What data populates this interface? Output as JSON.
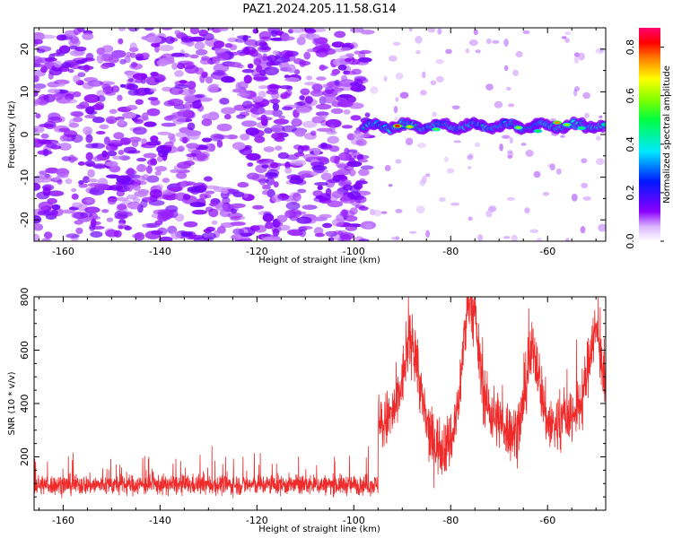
{
  "figure": {
    "title": "PAZ1.2024.205.11.58.G14"
  },
  "chart_data": [
    {
      "type": "heatmap",
      "title": "PAZ1.2024.205.11.58.G14",
      "xlabel": "Height of straight line (km)",
      "ylabel": "Frequency (Hz)",
      "xlim": [
        -166,
        -48
      ],
      "ylim": [
        -25,
        25
      ],
      "x_ticks": [
        -160,
        -140,
        -120,
        -100,
        -80,
        -60
      ],
      "y_ticks": [
        -20,
        -10,
        0,
        10,
        20
      ],
      "colorbar": {
        "label": "Normalized spectral amplitude",
        "range": [
          0.0,
          0.88
        ],
        "ticks": [
          "0.0",
          "0.2",
          "0.4",
          "0.6",
          "0.8"
        ],
        "colormap": "rainbow (white-violet-blue-cyan-green-yellow-red-magenta)"
      },
      "features": {
        "noise_region_x": [
          -166,
          -97
        ],
        "signal_band": {
          "x_range": [
            -98,
            -48
          ],
          "frequency_start": 2,
          "frequency_end": 2,
          "peak_amplitude": 0.8
        }
      },
      "grid": false
    },
    {
      "type": "line",
      "xlabel": "Height of straight line (km)",
      "ylabel": "SNR (10 * v/v)",
      "xlim": [
        -166,
        -48
      ],
      "ylim": [
        0,
        800
      ],
      "x_ticks": [
        -160,
        -140,
        -120,
        -100,
        -80,
        -60
      ],
      "y_ticks": [
        200,
        400,
        600,
        800
      ],
      "color": "#ee2a2a",
      "features": {
        "baseline_x_range": [
          -166,
          -95
        ],
        "baseline_mean": 95,
        "rise_at_x": -95,
        "peaks": [
          {
            "x": -88,
            "y": 620
          },
          {
            "x": -76,
            "y": 790
          },
          {
            "x": -63,
            "y": 680
          },
          {
            "x": -50,
            "y": 700
          }
        ]
      },
      "grid": false
    }
  ]
}
